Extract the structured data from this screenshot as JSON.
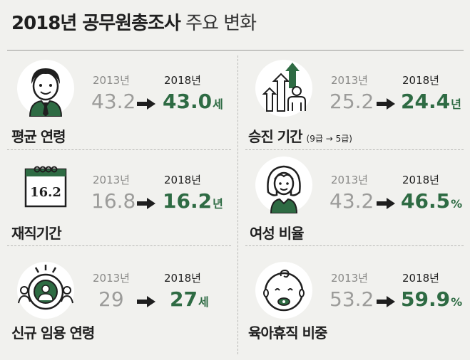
{
  "title": {
    "bold": "2018년 공무원총조사",
    "light": "주요 변화"
  },
  "colors": {
    "accent_green": "#2e6b43",
    "old_value_gray": "#9c9c9a",
    "background": "#f1f1ee"
  },
  "items": [
    {
      "label": "평균 연령",
      "icon": "man-with-tie-icon",
      "year_old": "2013년",
      "year_new": "2018년",
      "value_old": "43.2",
      "value_new": "43.0",
      "unit": "세"
    },
    {
      "label": "승진 기간",
      "note": "(9급 → 5급)",
      "icon": "growth-arrows-person-icon",
      "year_old": "2013년",
      "year_new": "2018년",
      "value_old": "25.2",
      "value_new": "24.4",
      "unit": "년"
    },
    {
      "label": "재직기간",
      "icon": "calendar-icon",
      "calendar_text": "16.2",
      "year_old": "2013년",
      "year_new": "2018년",
      "value_old": "16.8",
      "value_new": "16.2",
      "unit": "년"
    },
    {
      "label": "여성 비율",
      "icon": "woman-icon",
      "year_old": "2013년",
      "year_new": "2018년",
      "value_old": "43.2",
      "value_new": "46.5",
      "unit": "%"
    },
    {
      "label": "신규 임용 연령",
      "icon": "target-person-icon",
      "year_old": "2013년",
      "year_new": "2018년",
      "value_old": "29",
      "value_new": "27",
      "unit": "세"
    },
    {
      "label": "육아휴직 비중",
      "icon": "baby-face-icon",
      "year_old": "2013년",
      "year_new": "2018년",
      "value_old": "53.2",
      "value_new": "59.9",
      "unit": "%"
    }
  ]
}
